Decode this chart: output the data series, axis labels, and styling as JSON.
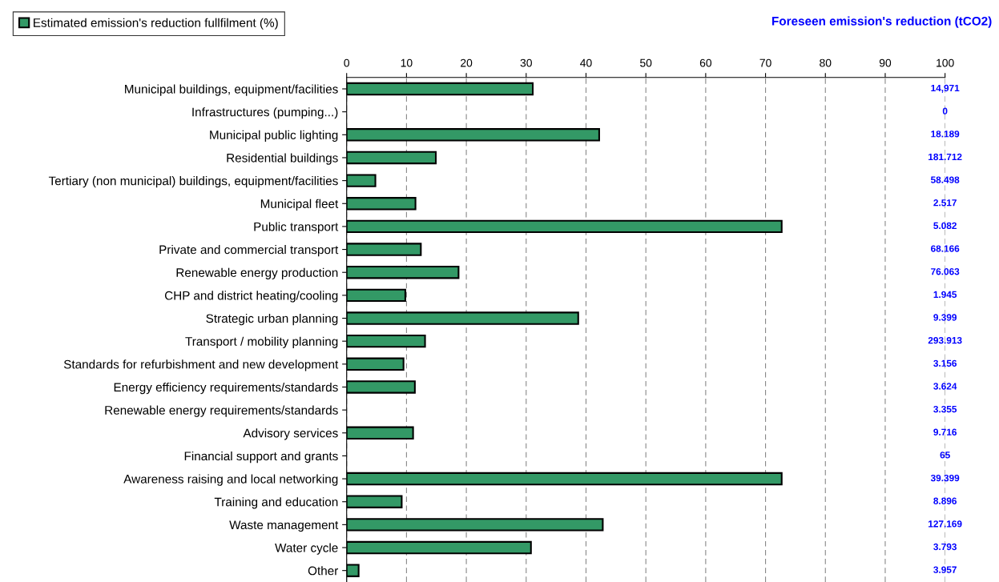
{
  "chart_data": {
    "type": "bar",
    "orientation": "horizontal",
    "y2label": "Foreseen emission's reduction (tCO2)",
    "categories": [
      "Municipal buildings, equipment/facilities",
      "Infrastructures (pumping...)",
      "Municipal public lighting",
      "Residential buildings",
      "Tertiary (non municipal) buildings, equipment/facilities",
      "Municipal fleet",
      "Public transport",
      "Private and commercial transport",
      "Renewable energy production",
      "CHP and district heating/cooling",
      "Strategic urban planning",
      "Transport / mobility planning",
      "Standards for refurbishment and new development",
      "Energy efficiency requirements/standards",
      "Renewable energy requirements/standards",
      "Advisory services",
      "Financial support and grants",
      "Awareness raising and local networking",
      "Training and education",
      "Waste management",
      "Water cycle",
      "Other"
    ],
    "series": [
      {
        "name": "Estimated emission's reduction fullfilment (%)",
        "color": "#339966",
        "values": [
          31.1,
          null,
          42.2,
          14.9,
          4.8,
          11.5,
          72.7,
          12.4,
          18.7,
          9.8,
          38.7,
          13.1,
          9.5,
          11.4,
          null,
          11.1,
          null,
          72.7,
          9.2,
          42.8,
          30.8,
          2.0
        ]
      }
    ],
    "xlim": [
      0,
      100
    ],
    "xticks": [
      0,
      10,
      20,
      30,
      40,
      50,
      60,
      70,
      80,
      90,
      100
    ],
    "grid": "x",
    "legend": "top left",
    "annotations": [
      "14,971",
      "0",
      "18.189",
      "181.712",
      "58.498",
      "2.517",
      "5.082",
      "68.166",
      "76.063",
      "1.945",
      "9.399",
      "293.913",
      "3.156",
      "3.624",
      "3.355",
      "9.716",
      "65",
      "39.399",
      "8.896",
      "127.169",
      "3.793",
      "3.957"
    ]
  }
}
